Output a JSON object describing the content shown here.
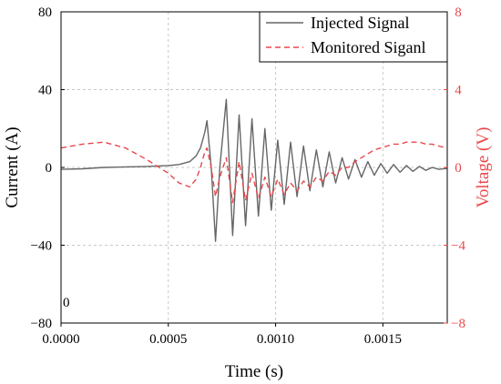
{
  "chart_data": {
    "type": "line",
    "xlabel": "Time (s)",
    "ylabel_left": "Current (A)",
    "ylabel_right": "Voltage (V)",
    "xlim": [
      0,
      0.0018
    ],
    "ylim_left": [
      -80,
      80
    ],
    "ylim_right": [
      -8,
      8
    ],
    "x_ticks": [
      0,
      0.0005,
      0.001,
      0.0015
    ],
    "x_tick_labels": [
      "0.0000",
      "0.0005",
      "0.0010",
      "0.0015"
    ],
    "y_left_ticks": [
      80,
      40,
      0,
      -40,
      -80
    ],
    "y_left_tick_labels": [
      "80",
      "40",
      "0",
      "−40",
      "−80"
    ],
    "y_right_ticks": [
      8,
      4,
      0,
      -4,
      -8
    ],
    "y_right_tick_labels": [
      "8",
      "4",
      "0",
      "−4",
      "−8"
    ],
    "grid": true,
    "legend_position": "top-right",
    "annotation": "0",
    "colors": {
      "injected": "#666666",
      "monitored": "#e8474b",
      "right_axis": "#e8474b",
      "grid": "#c8c8c8",
      "axes": "#000000"
    },
    "series": [
      {
        "name": "Injected Signal",
        "axis": "left",
        "style": "solid",
        "x": [
          0,
          0.0001,
          0.0002,
          0.0003,
          0.0004,
          0.0005,
          0.00055,
          0.0006,
          0.00063,
          0.00065,
          0.00067,
          0.00068,
          0.0007,
          0.00072,
          0.00074,
          0.00077,
          0.0008,
          0.00083,
          0.00086,
          0.00089,
          0.00092,
          0.00095,
          0.00098,
          0.00101,
          0.00104,
          0.00107,
          0.0011,
          0.00113,
          0.00116,
          0.00119,
          0.00122,
          0.00125,
          0.00128,
          0.00131,
          0.00134,
          0.00137,
          0.0014,
          0.00143,
          0.00146,
          0.00149,
          0.00152,
          0.00155,
          0.00158,
          0.00161,
          0.00164,
          0.00167,
          0.0017,
          0.00173,
          0.00176,
          0.0018
        ],
        "values": [
          -1,
          -0.7,
          0,
          0.3,
          0.5,
          1,
          1.5,
          3,
          6,
          10,
          18,
          24,
          0,
          -38,
          0,
          35,
          -35,
          27,
          -30,
          25,
          -25,
          20,
          -22,
          14,
          -19,
          13,
          -15,
          11,
          -12,
          9,
          -10,
          8,
          -8,
          5,
          -6,
          4,
          -5,
          3,
          -4,
          2,
          -3,
          1.5,
          -2.5,
          1,
          -2,
          0.5,
          -1.5,
          0,
          -1,
          -0.5
        ]
      },
      {
        "name": "Monitored Siganl",
        "axis": "right",
        "style": "dashed",
        "x": [
          0,
          0.0001,
          0.0002,
          0.0003,
          0.0004,
          0.0005,
          0.00055,
          0.0006,
          0.00063,
          0.00065,
          0.00067,
          0.00068,
          0.0007,
          0.00072,
          0.00074,
          0.00077,
          0.0008,
          0.00083,
          0.00086,
          0.00089,
          0.00092,
          0.00095,
          0.00098,
          0.00101,
          0.00104,
          0.00107,
          0.0011,
          0.00113,
          0.00116,
          0.00119,
          0.00122,
          0.00125,
          0.00128,
          0.00131,
          0.00134,
          0.00137,
          0.0014,
          0.00143,
          0.00146,
          0.00149,
          0.00152,
          0.00155,
          0.00158,
          0.00161,
          0.00164,
          0.00167,
          0.0017,
          0.00173,
          0.00176,
          0.0018
        ],
        "values": [
          1,
          1.2,
          1.3,
          1,
          0.4,
          -0.3,
          -0.8,
          -1,
          -0.6,
          0,
          0.8,
          1,
          0,
          -1.5,
          -0.5,
          0.5,
          -1.8,
          0.3,
          -1.7,
          -0.3,
          -1.6,
          -0.5,
          -1.5,
          -0.6,
          -1.4,
          -0.8,
          -1.2,
          -0.7,
          -1,
          -0.5,
          -0.7,
          -0.2,
          -0.4,
          0,
          0,
          0.3,
          0.5,
          0.7,
          0.9,
          1,
          1.1,
          1.2,
          1.2,
          1.3,
          1.3,
          1.3,
          1.2,
          1.2,
          1.1,
          1
        ]
      }
    ]
  }
}
